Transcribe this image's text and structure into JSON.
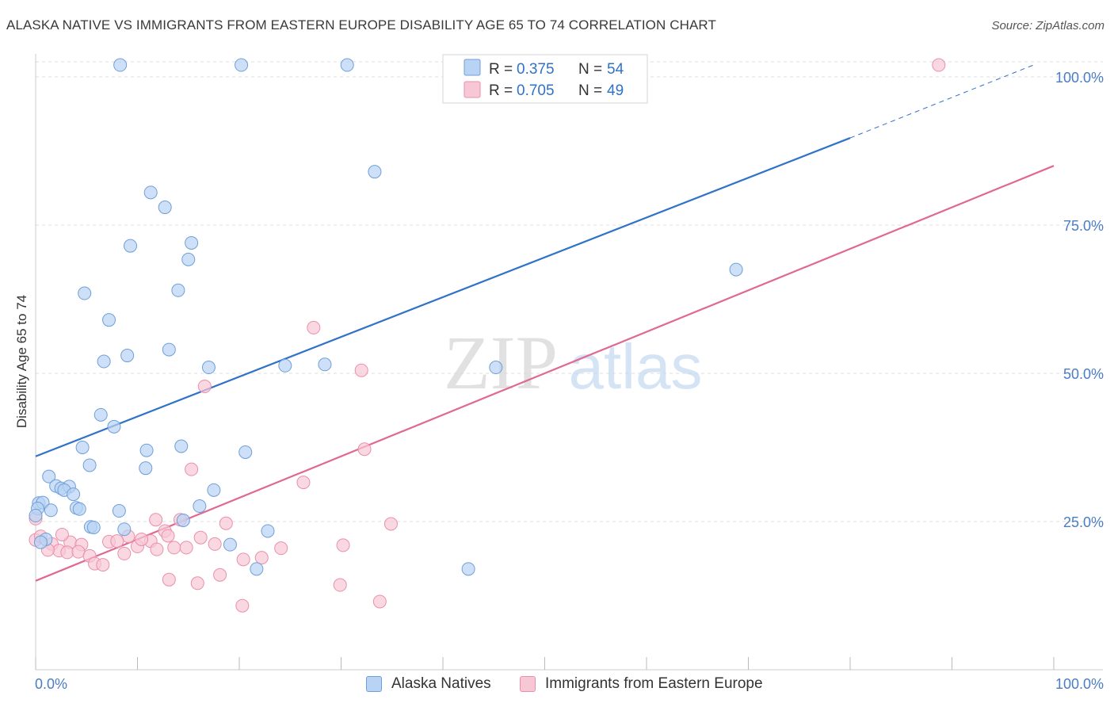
{
  "title": "ALASKA NATIVE VS IMMIGRANTS FROM EASTERN EUROPE DISABILITY AGE 65 TO 74 CORRELATION CHART",
  "source": "Source: ZipAtlas.com",
  "watermark": {
    "zip": "ZIP",
    "atlas": "atlas"
  },
  "colors": {
    "blue_fill": "#b8d3f3",
    "blue_stroke": "#6f9fd8",
    "blue_line": "#2f72c8",
    "pink_fill": "#f8c7d6",
    "pink_stroke": "#ea8fab",
    "pink_line": "#e06893",
    "tick_label": "#4a7cc7",
    "grid": "#dddddd"
  },
  "legend_top": {
    "rows": [
      {
        "r_label": "R =",
        "r_value": "0.375",
        "n_label": "N =",
        "n_value": "54"
      },
      {
        "r_label": "R =",
        "r_value": "0.705",
        "n_label": "N =",
        "n_value": "49"
      }
    ]
  },
  "legend_bottom": {
    "items": [
      "Alaska Natives",
      "Immigrants from Eastern Europe"
    ]
  },
  "chart_data": {
    "type": "scatter",
    "title": "ALASKA NATIVE VS IMMIGRANTS FROM EASTERN EUROPE DISABILITY AGE 65 TO 74 CORRELATION CHART",
    "ylabel": "Disability Age 65 to 74",
    "xlabel": "",
    "x_tick_labels": [
      "0.0%",
      "100.0%"
    ],
    "y_tick_labels": [
      "25.0%",
      "50.0%",
      "75.0%",
      "100.0%"
    ],
    "xlim": [
      0,
      100
    ],
    "ylim": [
      0,
      100
    ],
    "grid": true,
    "legend_placement": "top-center",
    "series": [
      {
        "name": "Alaska Natives",
        "r": 0.375,
        "n": 54,
        "trend": {
          "x0": 0,
          "y0": 36.0,
          "x1": 80,
          "y1": 89.7,
          "dashed_to_x": 98,
          "dashed_to_y": 102.0
        },
        "points": [
          [
            8.3,
            102
          ],
          [
            20.2,
            102
          ],
          [
            30.6,
            102
          ],
          [
            33.3,
            84
          ],
          [
            11.3,
            80.5
          ],
          [
            12.7,
            78
          ],
          [
            15.3,
            72
          ],
          [
            9.3,
            71.5
          ],
          [
            15.0,
            69.2
          ],
          [
            14.0,
            64
          ],
          [
            4.8,
            63.5
          ],
          [
            7.2,
            59
          ],
          [
            13.1,
            54
          ],
          [
            9.0,
            53
          ],
          [
            6.7,
            52
          ],
          [
            17.0,
            51
          ],
          [
            24.5,
            51.3
          ],
          [
            28.4,
            51.5
          ],
          [
            45.2,
            51
          ],
          [
            68.8,
            67.5
          ],
          [
            6.4,
            43
          ],
          [
            7.7,
            41
          ],
          [
            4.6,
            37.5
          ],
          [
            10.9,
            37
          ],
          [
            14.3,
            37.7
          ],
          [
            20.6,
            36.7
          ],
          [
            5.3,
            34.5
          ],
          [
            10.8,
            34
          ],
          [
            1.3,
            32.6
          ],
          [
            2.0,
            31
          ],
          [
            2.5,
            30.6
          ],
          [
            3.3,
            30.9
          ],
          [
            2.8,
            30.3
          ],
          [
            3.7,
            29.6
          ],
          [
            17.5,
            30.3
          ],
          [
            0.3,
            28.1
          ],
          [
            0.7,
            28.2
          ],
          [
            0.2,
            27.2
          ],
          [
            1.5,
            26.9
          ],
          [
            4.0,
            27.3
          ],
          [
            4.3,
            27.1
          ],
          [
            8.2,
            26.8
          ],
          [
            16.1,
            27.6
          ],
          [
            14.5,
            25.2
          ],
          [
            5.4,
            24.1
          ],
          [
            5.7,
            24.0
          ],
          [
            8.7,
            23.7
          ],
          [
            22.8,
            23.4
          ],
          [
            19.1,
            21.1
          ],
          [
            42.5,
            17.0
          ],
          [
            21.7,
            17.0
          ],
          [
            0.0,
            26.0
          ],
          [
            1.0,
            22.0
          ],
          [
            0.5,
            21.5
          ]
        ]
      },
      {
        "name": "Immigrants from Eastern Europe",
        "r": 0.705,
        "n": 49,
        "trend": {
          "x0": 0,
          "y0": 15.0,
          "x1": 100,
          "y1": 85.0
        },
        "points": [
          [
            88.7,
            102
          ],
          [
            27.3,
            57.7
          ],
          [
            32.0,
            50.5
          ],
          [
            16.6,
            47.8
          ],
          [
            32.3,
            37.2
          ],
          [
            15.3,
            33.8
          ],
          [
            26.3,
            31.6
          ],
          [
            34.9,
            24.6
          ],
          [
            18.7,
            24.7
          ],
          [
            14.2,
            25.3
          ],
          [
            11.8,
            25.3
          ],
          [
            12.7,
            23.4
          ],
          [
            13.0,
            22.6
          ],
          [
            9.1,
            22.5
          ],
          [
            16.2,
            22.3
          ],
          [
            11.3,
            21.7
          ],
          [
            7.2,
            21.6
          ],
          [
            8.0,
            21.7
          ],
          [
            10.0,
            20.8
          ],
          [
            3.4,
            21.5
          ],
          [
            4.5,
            21.1
          ],
          [
            1.6,
            21.2
          ],
          [
            0.0,
            21.9
          ],
          [
            2.3,
            20.1
          ],
          [
            3.1,
            19.8
          ],
          [
            4.2,
            19.9
          ],
          [
            5.3,
            19.2
          ],
          [
            8.7,
            19.6
          ],
          [
            11.9,
            20.3
          ],
          [
            13.6,
            20.6
          ],
          [
            14.8,
            20.6
          ],
          [
            24.1,
            20.5
          ],
          [
            20.4,
            18.6
          ],
          [
            22.2,
            18.9
          ],
          [
            5.8,
            17.9
          ],
          [
            6.6,
            17.7
          ],
          [
            30.2,
            21.0
          ],
          [
            18.1,
            16.0
          ],
          [
            13.1,
            15.2
          ],
          [
            15.9,
            14.6
          ],
          [
            29.9,
            14.3
          ],
          [
            33.8,
            11.5
          ],
          [
            20.3,
            10.8
          ],
          [
            0.5,
            22.5
          ],
          [
            1.2,
            20.2
          ],
          [
            2.6,
            22.8
          ],
          [
            17.6,
            21.2
          ],
          [
            10.4,
            22.0
          ],
          [
            0.0,
            25.5
          ]
        ]
      }
    ]
  }
}
